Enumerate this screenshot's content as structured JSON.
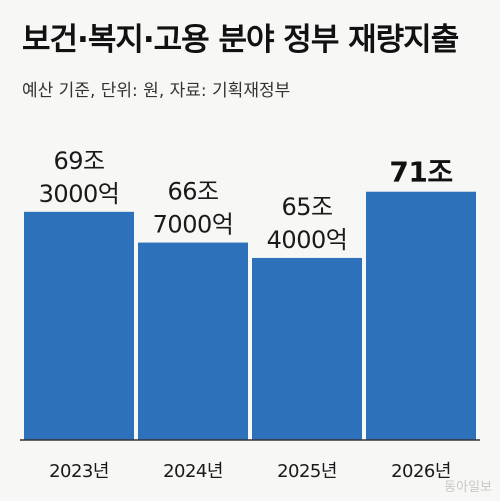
{
  "header": {
    "title": "보건·복지·고용 분야 정부 재량지출",
    "subtitle": "예산 기준, 단위: 원, 자료: 기획재정부"
  },
  "watermark": "동아일보",
  "colors": {
    "bar": "#2d71ba",
    "highlight_label": "#111111",
    "axis": "#333333"
  },
  "chart_data": {
    "type": "bar",
    "title": "보건·복지·고용 분야 정부 재량지출",
    "xlabel": "",
    "ylabel": "",
    "unit": "원",
    "categories": [
      "2023년",
      "2024년",
      "2025년",
      "2026년"
    ],
    "values_jo": [
      69.3,
      66.7,
      65.4,
      71.0
    ],
    "data_labels": [
      [
        "69조",
        "3000억"
      ],
      [
        "66조",
        "7000억"
      ],
      [
        "65조",
        "4000억"
      ],
      [
        "71조"
      ]
    ],
    "highlight_index": 3,
    "ylim": [
      50,
      72.5
    ],
    "grid": false,
    "legend": "none"
  }
}
